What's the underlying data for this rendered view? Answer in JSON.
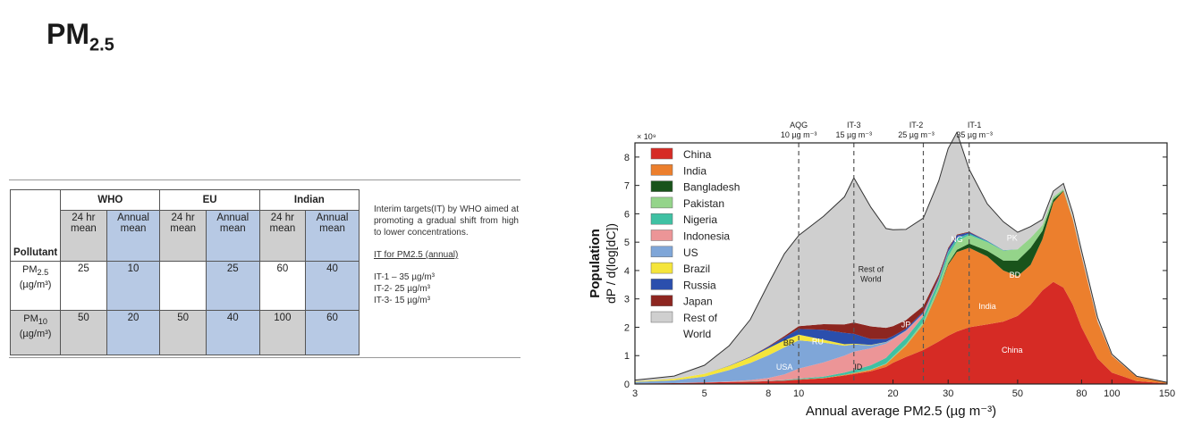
{
  "title": {
    "main": "PM",
    "sub": "2.5"
  },
  "table": {
    "groups": [
      "WHO",
      "EU",
      "Indian"
    ],
    "pollutant_header": "Pollutant",
    "sub_headers": [
      "24 hr mean",
      "Annual mean",
      "24 hr mean",
      "Annual mean",
      "24 hr mean",
      "Annual mean"
    ],
    "rows": [
      {
        "pollutant": "PM",
        "pollutant_sub": "2.5",
        "unit": "(µg/m³)",
        "values": [
          "25",
          "10",
          "",
          "25",
          "60",
          "40"
        ]
      },
      {
        "pollutant": "PM",
        "pollutant_sub": "10",
        "unit": "(µg/m³)",
        "values": [
          "50",
          "20",
          "50",
          "40",
          "100",
          "60"
        ]
      }
    ]
  },
  "notes": {
    "intro": "Interim targets(IT) by WHO aimed at promoting a gradual shift from high to lower concentrations.",
    "it_heading": "IT for PM2.5 (annual)",
    "it_lines": [
      "IT-1 – 35 µg/m³",
      "IT-2-  25 µg/m³",
      "IT-3-  15 µg/m³"
    ]
  },
  "chart_data": {
    "type": "area",
    "subtype": "stacked",
    "title": "",
    "xlabel": "Annual average PM2.5 (µg m⁻³)",
    "ylabel": "Population dP / d(log[dC])",
    "y_multiplier": "× 10⁹",
    "x_scale": "log",
    "xlim": [
      3,
      150
    ],
    "ylim": [
      0,
      8.5
    ],
    "xticks": [
      3,
      5,
      8,
      10,
      20,
      30,
      50,
      80,
      100,
      150
    ],
    "yticks": [
      0,
      1,
      2,
      3,
      4,
      5,
      6,
      7,
      8
    ],
    "x": [
      3,
      4,
      5,
      6,
      7,
      8,
      9,
      10,
      12,
      14,
      15,
      17,
      19,
      20,
      22,
      25,
      28,
      30,
      32,
      35,
      40,
      45,
      50,
      55,
      60,
      65,
      70,
      75,
      80,
      90,
      100,
      120,
      150
    ],
    "series": [
      {
        "name": "China",
        "color": "#d62b25",
        "values": [
          0.02,
          0.03,
          0.05,
          0.07,
          0.08,
          0.1,
          0.12,
          0.15,
          0.2,
          0.3,
          0.35,
          0.45,
          0.6,
          0.75,
          0.95,
          1.2,
          1.5,
          1.7,
          1.85,
          2.0,
          2.1,
          2.2,
          2.4,
          2.8,
          3.3,
          3.6,
          3.4,
          2.8,
          2.0,
          0.9,
          0.4,
          0.1,
          0.02
        ]
      },
      {
        "name": "India",
        "color": "#ec7f2d",
        "values": [
          0,
          0,
          0,
          0,
          0,
          0,
          0,
          0.01,
          0.01,
          0.02,
          0.03,
          0.05,
          0.1,
          0.18,
          0.4,
          0.9,
          1.8,
          2.5,
          2.8,
          2.8,
          2.4,
          1.8,
          1.4,
          1.4,
          1.8,
          2.8,
          3.4,
          3.0,
          2.5,
          1.3,
          0.6,
          0.15,
          0.03
        ]
      },
      {
        "name": "Bangladesh",
        "color": "#19531b",
        "values": [
          0,
          0,
          0,
          0,
          0,
          0,
          0,
          0,
          0,
          0,
          0,
          0,
          0,
          0,
          0,
          0.01,
          0.02,
          0.05,
          0.08,
          0.15,
          0.2,
          0.35,
          0.55,
          0.6,
          0.3,
          0.1,
          0.02,
          0,
          0,
          0,
          0,
          0,
          0
        ]
      },
      {
        "name": "Pakistan",
        "color": "#94d48a",
        "values": [
          0,
          0,
          0,
          0,
          0,
          0,
          0,
          0,
          0,
          0,
          0.01,
          0.01,
          0.02,
          0.03,
          0.05,
          0.08,
          0.15,
          0.25,
          0.3,
          0.3,
          0.3,
          0.35,
          0.4,
          0.35,
          0.2,
          0.1,
          0.05,
          0.02,
          0,
          0,
          0,
          0,
          0
        ]
      },
      {
        "name": "Nigeria",
        "color": "#3fc1a3",
        "values": [
          0,
          0,
          0,
          0,
          0.01,
          0.01,
          0.02,
          0.03,
          0.05,
          0.08,
          0.1,
          0.15,
          0.2,
          0.22,
          0.22,
          0.2,
          0.18,
          0.15,
          0.1,
          0.05,
          0.03,
          0.01,
          0,
          0,
          0,
          0,
          0,
          0,
          0,
          0,
          0,
          0,
          0
        ]
      },
      {
        "name": "Indonesia",
        "color": "#ec9597",
        "values": [
          0,
          0,
          0.01,
          0.02,
          0.05,
          0.1,
          0.2,
          0.35,
          0.5,
          0.6,
          0.65,
          0.6,
          0.5,
          0.4,
          0.25,
          0.1,
          0.05,
          0.02,
          0.01,
          0,
          0,
          0,
          0,
          0,
          0,
          0,
          0,
          0,
          0,
          0,
          0,
          0,
          0
        ]
      },
      {
        "name": "US",
        "color": "#7fa6d8",
        "values": [
          0.05,
          0.1,
          0.2,
          0.4,
          0.6,
          0.8,
          0.95,
          1.0,
          0.7,
          0.35,
          0.25,
          0.1,
          0.05,
          0.03,
          0.02,
          0.01,
          0,
          0,
          0,
          0,
          0,
          0,
          0,
          0,
          0,
          0,
          0,
          0,
          0,
          0,
          0,
          0,
          0
        ]
      },
      {
        "name": "Brazil",
        "color": "#f5e53b",
        "values": [
          0.02,
          0.05,
          0.1,
          0.15,
          0.2,
          0.25,
          0.25,
          0.2,
          0.1,
          0.05,
          0.03,
          0.02,
          0.01,
          0,
          0,
          0,
          0,
          0,
          0,
          0,
          0,
          0,
          0,
          0,
          0,
          0,
          0,
          0,
          0,
          0,
          0,
          0,
          0
        ]
      },
      {
        "name": "Russia",
        "color": "#2b4fad",
        "values": [
          0,
          0,
          0,
          0.01,
          0.02,
          0.05,
          0.1,
          0.2,
          0.35,
          0.4,
          0.35,
          0.2,
          0.1,
          0.08,
          0.06,
          0.05,
          0.06,
          0.08,
          0.1,
          0.05,
          0.02,
          0.01,
          0,
          0,
          0,
          0,
          0,
          0,
          0,
          0,
          0,
          0,
          0
        ]
      },
      {
        "name": "Japan",
        "color": "#8d2620",
        "values": [
          0,
          0,
          0,
          0,
          0.01,
          0.02,
          0.05,
          0.1,
          0.2,
          0.3,
          0.4,
          0.45,
          0.4,
          0.35,
          0.3,
          0.2,
          0.1,
          0.05,
          0.03,
          0.02,
          0,
          0,
          0,
          0,
          0,
          0,
          0,
          0,
          0,
          0,
          0,
          0,
          0
        ]
      },
      {
        "name": "Rest of World",
        "color": "#cfcfcf",
        "values": [
          0.05,
          0.1,
          0.3,
          0.7,
          1.3,
          2.2,
          2.9,
          3.2,
          3.8,
          4.5,
          5.1,
          4.2,
          3.5,
          3.4,
          3.2,
          3.1,
          3.3,
          3.5,
          3.6,
          2.2,
          1.3,
          1.0,
          0.6,
          0.4,
          0.2,
          0.2,
          0.2,
          0.2,
          0.2,
          0.15,
          0.05,
          0.02,
          0.01
        ]
      }
    ],
    "legend": [
      "China",
      "India",
      "Bangladesh",
      "Pakistan",
      "Nigeria",
      "Indonesia",
      "US",
      "Brazil",
      "Russia",
      "Japan",
      "Rest of World"
    ],
    "legend_position": "top-left",
    "guidelines": [
      {
        "x": 10,
        "label": "AQG",
        "sublabel": "10 µg m⁻³"
      },
      {
        "x": 15,
        "label": "IT-3",
        "sublabel": "15 µg m⁻³"
      },
      {
        "x": 25,
        "label": "IT-2",
        "sublabel": "25 µg m⁻³"
      },
      {
        "x": 35,
        "label": "IT-1",
        "sublabel": "35 µg m⁻³"
      }
    ],
    "annotations": [
      {
        "text": "Rest of",
        "x": 17,
        "y": 3.95,
        "color": "#222"
      },
      {
        "text": "World",
        "x": 17,
        "y": 3.6,
        "color": "#222"
      },
      {
        "text": "NG",
        "x": 32,
        "y": 5.0,
        "color": "#ffffff"
      },
      {
        "text": "PK",
        "x": 48,
        "y": 5.05,
        "color": "#ffffff"
      },
      {
        "text": "BD",
        "x": 49,
        "y": 3.75,
        "color": "#ffffff"
      },
      {
        "text": "India",
        "x": 40,
        "y": 2.65,
        "color": "#ffffff"
      },
      {
        "text": "China",
        "x": 48,
        "y": 1.1,
        "color": "#ffffff"
      },
      {
        "text": "JP",
        "x": 22,
        "y": 2.0,
        "color": "#ffffff"
      },
      {
        "text": "RU",
        "x": 11.5,
        "y": 1.4,
        "color": "#ffffff"
      },
      {
        "text": "BR",
        "x": 9.3,
        "y": 1.35,
        "color": "#222"
      },
      {
        "text": "USA",
        "x": 9.0,
        "y": 0.5,
        "color": "#ffffff"
      },
      {
        "text": "ID",
        "x": 15.5,
        "y": 0.5,
        "color": "#222"
      }
    ]
  }
}
